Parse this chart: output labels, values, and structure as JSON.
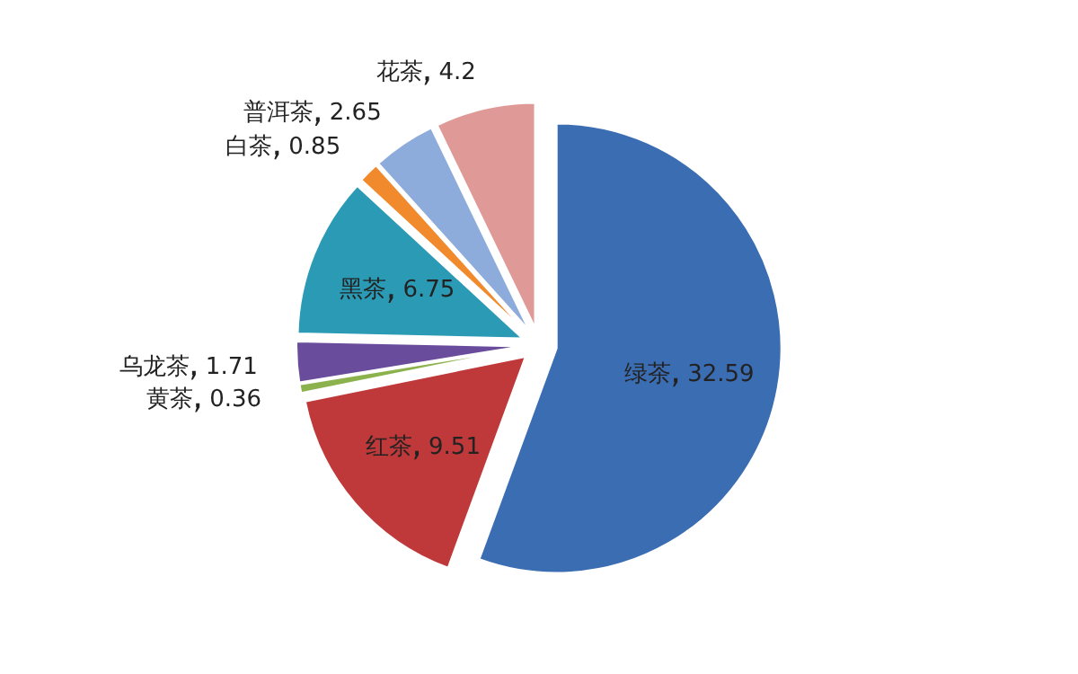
{
  "chart_data": {
    "type": "pie",
    "categories": [
      "绿茶",
      "红茶",
      "黄茶",
      "乌龙茶",
      "黑茶",
      "白茶",
      "普洱茶",
      "花茶"
    ],
    "values": [
      32.59,
      9.51,
      0.36,
      1.71,
      6.75,
      0.85,
      2.65,
      4.2
    ],
    "colors": [
      "#3b6db3",
      "#c0393a",
      "#8cb24e",
      "#6a4c9c",
      "#2b9ab5",
      "#f08a2c",
      "#8eacdb",
      "#df9a98"
    ],
    "data_labels": true,
    "legend": false
  }
}
